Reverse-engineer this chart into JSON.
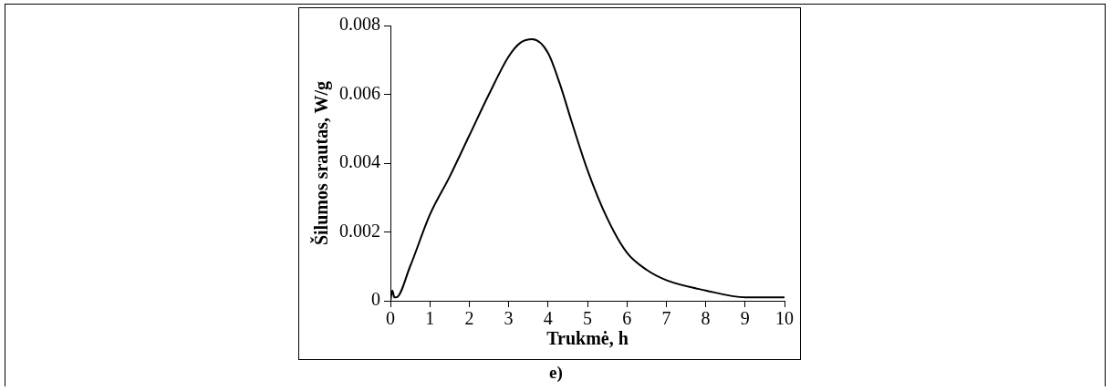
{
  "chart_data": {
    "type": "line",
    "xlabel": "Trukmė, h",
    "ylabel": "Šilumos srautas, W/g",
    "annotations": [
      "e)"
    ],
    "series": [
      {
        "color": "#000000",
        "x": [
          0,
          0.05,
          0.1,
          0.15,
          0.5,
          1,
          1.5,
          2,
          2.5,
          3,
          3.3,
          3.6,
          4,
          4.3,
          4.6,
          5,
          5.5,
          6,
          6.5,
          7,
          8,
          9,
          10
        ],
        "values": [
          0,
          0.0003,
          0.0001,
          0.0001,
          0.001,
          0.0025,
          0.0036,
          0.0048,
          0.006,
          0.0071,
          0.0075,
          0.0076,
          0.0072,
          0.0063,
          0.0052,
          0.0038,
          0.0024,
          0.0014,
          0.0009,
          0.0006,
          0.0003,
          0.0001,
          0.0001
        ]
      }
    ],
    "xlim": [
      0,
      10
    ],
    "xticks": [
      0,
      1,
      2,
      3,
      4,
      5,
      6,
      7,
      8,
      9,
      10
    ],
    "ylim": [
      0,
      0.008
    ],
    "yticks": [
      0,
      0.002,
      0.004,
      0.006,
      0.008
    ],
    "grid": false,
    "legend": false,
    "marker": "none",
    "line_style": "solid"
  }
}
